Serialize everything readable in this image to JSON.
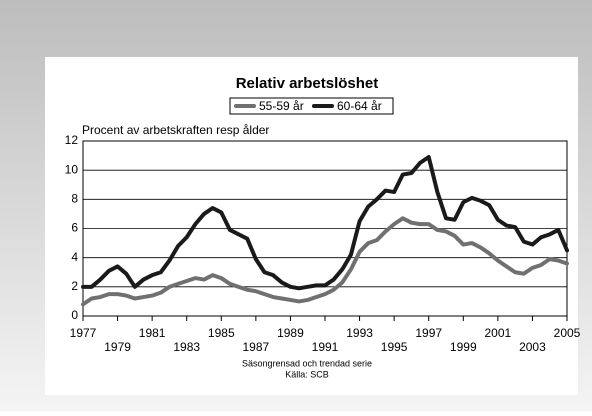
{
  "chart_data": {
    "type": "line",
    "title": "Relativ arbetslöshet",
    "ylabel": "Procent av arbetskraften resp ålder",
    "notes": [
      "Säsongrensad och trendad serie",
      "Källa: SCB"
    ],
    "legend": "top",
    "grid": true,
    "xlim": [
      1977,
      2005
    ],
    "xticks": [
      1977,
      1979,
      1981,
      1983,
      1985,
      1987,
      1989,
      1991,
      1993,
      1995,
      1997,
      1999,
      2001,
      2003,
      2005
    ],
    "ylim": [
      0,
      12
    ],
    "yticks": [
      0,
      2,
      4,
      6,
      8,
      10,
      12
    ],
    "x": [
      1977,
      1977.5,
      1978,
      1978.5,
      1979,
      1979.5,
      1980,
      1980.5,
      1981,
      1981.5,
      1982,
      1982.5,
      1983,
      1983.5,
      1984,
      1984.5,
      1985,
      1985.5,
      1986,
      1986.5,
      1987,
      1987.5,
      1988,
      1988.5,
      1989,
      1989.5,
      1990,
      1990.5,
      1991,
      1991.5,
      1992,
      1992.5,
      1993,
      1993.5,
      1994,
      1994.5,
      1995,
      1995.5,
      1996,
      1996.5,
      1997,
      1997.5,
      1998,
      1998.5,
      1999,
      1999.5,
      2000,
      2000.5,
      2001,
      2001.5,
      2002,
      2002.5,
      2003,
      2003.5,
      2004,
      2004.5,
      2005
    ],
    "series": [
      {
        "name": "55-59 år",
        "color": "#707070",
        "values": [
          0.8,
          1.2,
          1.3,
          1.5,
          1.5,
          1.4,
          1.2,
          1.3,
          1.4,
          1.6,
          2.0,
          2.2,
          2.4,
          2.6,
          2.5,
          2.8,
          2.6,
          2.2,
          2.0,
          1.8,
          1.7,
          1.5,
          1.3,
          1.2,
          1.1,
          1.0,
          1.1,
          1.3,
          1.5,
          1.8,
          2.3,
          3.2,
          4.4,
          5.0,
          5.2,
          5.8,
          6.3,
          6.7,
          6.4,
          6.3,
          6.3,
          5.9,
          5.8,
          5.5,
          4.9,
          5.0,
          4.7,
          4.3,
          3.8,
          3.4,
          3.0,
          2.9,
          3.3,
          3.5,
          3.9,
          3.8,
          3.6
        ]
      },
      {
        "name": "60-64 år",
        "color": "#1a1a1a",
        "values": [
          2.0,
          2.0,
          2.5,
          3.1,
          3.4,
          2.9,
          2.0,
          2.5,
          2.8,
          3.0,
          3.8,
          4.8,
          5.4,
          6.3,
          7.0,
          7.4,
          7.1,
          5.9,
          5.6,
          5.3,
          3.9,
          3.0,
          2.8,
          2.3,
          2.0,
          1.9,
          2.0,
          2.1,
          2.1,
          2.5,
          3.2,
          4.2,
          6.5,
          7.5,
          8.0,
          8.6,
          8.5,
          9.7,
          9.8,
          10.5,
          10.9,
          8.5,
          6.7,
          6.6,
          7.8,
          8.1,
          7.9,
          7.6,
          6.6,
          6.2,
          6.1,
          5.1,
          4.9,
          5.4,
          5.6,
          5.9,
          4.5
        ]
      }
    ]
  }
}
